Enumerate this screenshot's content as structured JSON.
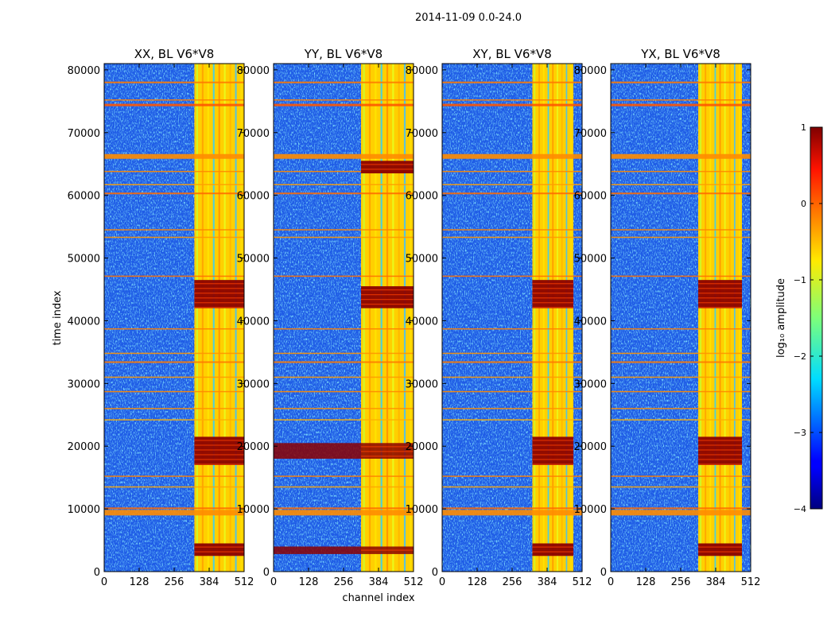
{
  "chart_data": {
    "type": "heatmap",
    "title": "2014-11-09 0.0-24.0",
    "xlabel": "channel index",
    "ylabel": "time index",
    "xlim": [
      0,
      512
    ],
    "ylim": [
      0,
      81000
    ],
    "xticks": [
      0,
      128,
      256,
      384,
      512
    ],
    "yticks": [
      0,
      10000,
      20000,
      30000,
      40000,
      50000,
      60000,
      70000,
      80000
    ],
    "colorbar": {
      "label": "log₁₀ amplitude",
      "range": [
        -4,
        1
      ],
      "ticks": [
        1,
        0,
        -1,
        -2,
        -3,
        -4
      ],
      "tick_labels": [
        "1",
        "0",
        "−1",
        "−2",
        "−3",
        "−4"
      ]
    },
    "panels": [
      {
        "name": "XX, BL V6*V8",
        "bright_channels": [
          330,
          512
        ],
        "strong_time_bands": [
          [
            2500,
            4500
          ],
          [
            17000,
            21500
          ],
          [
            42000,
            46500
          ]
        ]
      },
      {
        "name": "YY, BL V6*V8",
        "bright_channels": [
          320,
          512
        ],
        "strong_time_bands": [
          [
            2800,
            4000
          ],
          [
            18000,
            20500
          ],
          [
            42000,
            45500
          ],
          [
            63500,
            65500
          ]
        ]
      },
      {
        "name": "XY, BL V6*V8",
        "bright_channels": [
          330,
          480
        ],
        "strong_time_bands": [
          [
            2500,
            4500
          ],
          [
            17000,
            21500
          ],
          [
            42000,
            46500
          ]
        ]
      },
      {
        "name": "YX, BL V6*V8",
        "bright_channels": [
          320,
          480
        ],
        "strong_time_bands": [
          [
            2500,
            4500
          ],
          [
            17000,
            21500
          ],
          [
            42000,
            46500
          ]
        ]
      }
    ]
  }
}
